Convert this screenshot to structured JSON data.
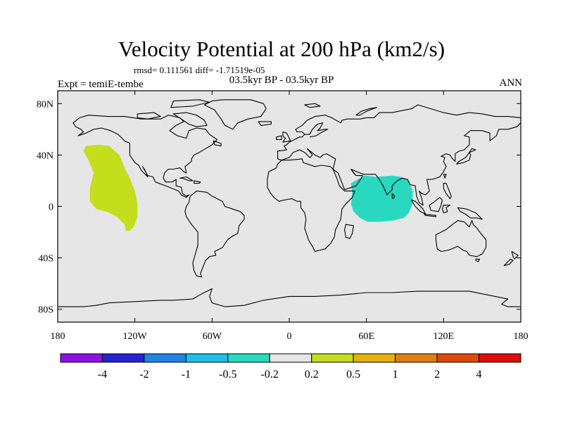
{
  "header": {
    "title": "Velocity Potential at 200 hPa (km2/s)",
    "stats": "rmsd= 0.111561  diff= -1.71519e-05",
    "experiment": "Expt = temiE-tembe",
    "period": "03.5kyr BP - 03.5kyr BP",
    "season": "ANN"
  },
  "map": {
    "projection": "cylindrical equidistant",
    "lon_range": [
      -180,
      180
    ],
    "lat_range": [
      -90,
      90
    ],
    "ocean_color": "#e6e6e6",
    "coast_color": "#000000",
    "x_ticks": [
      {
        "lon": -180,
        "label": "180"
      },
      {
        "lon": -120,
        "label": "120W"
      },
      {
        "lon": -60,
        "label": "60W"
      },
      {
        "lon": 0,
        "label": "0"
      },
      {
        "lon": 60,
        "label": "60E"
      },
      {
        "lon": 120,
        "label": "120E"
      },
      {
        "lon": 180,
        "label": "180"
      }
    ],
    "y_ticks": [
      {
        "lat": 80,
        "label": "80N"
      },
      {
        "lat": 40,
        "label": "40N"
      },
      {
        "lat": 0,
        "label": "0"
      },
      {
        "lat": -40,
        "label": "40S"
      },
      {
        "lat": -80,
        "label": "80S"
      }
    ],
    "regions": [
      {
        "name": "east-pacific-positive-anomaly",
        "color": "#c2de1c",
        "points": [
          [
            -158,
            47
          ],
          [
            -148,
            48
          ],
          [
            -140,
            47
          ],
          [
            -132,
            40
          ],
          [
            -128,
            30
          ],
          [
            -124,
            22
          ],
          [
            -120,
            12
          ],
          [
            -118,
            2
          ],
          [
            -118,
            -8
          ],
          [
            -121,
            -16
          ],
          [
            -124,
            -19
          ],
          [
            -127,
            -19
          ],
          [
            -128,
            -14
          ],
          [
            -134,
            -8
          ],
          [
            -142,
            -4
          ],
          [
            -150,
            -2
          ],
          [
            -155,
            4
          ],
          [
            -155,
            14
          ],
          [
            -152,
            26
          ],
          [
            -156,
            36
          ],
          [
            -160,
            43
          ]
        ]
      },
      {
        "name": "indian-ocean-negative-anomaly",
        "color": "#2ad8c0",
        "points": [
          [
            48,
            18
          ],
          [
            58,
            24
          ],
          [
            68,
            23
          ],
          [
            80,
            24
          ],
          [
            87,
            23
          ],
          [
            93,
            20
          ],
          [
            96,
            12
          ],
          [
            96,
            3
          ],
          [
            93,
            -5
          ],
          [
            89,
            -9
          ],
          [
            80,
            -11
          ],
          [
            70,
            -12
          ],
          [
            61,
            -12
          ],
          [
            55,
            -9
          ],
          [
            50,
            -4
          ],
          [
            48,
            2
          ],
          [
            49,
            9
          ]
        ]
      }
    ]
  },
  "colorbar": {
    "colors": [
      "#8b12e8",
      "#2522d6",
      "#1e84e6",
      "#1cc0ea",
      "#24dcbe",
      "#e6e6e6",
      "#c2de1c",
      "#e4b40a",
      "#e47e10",
      "#e24808",
      "#e00c0c"
    ],
    "labels": [
      "-4",
      "-2",
      "-1",
      "-0.5",
      "-0.2",
      "0.2",
      "0.5",
      "1",
      "2",
      "4"
    ]
  }
}
